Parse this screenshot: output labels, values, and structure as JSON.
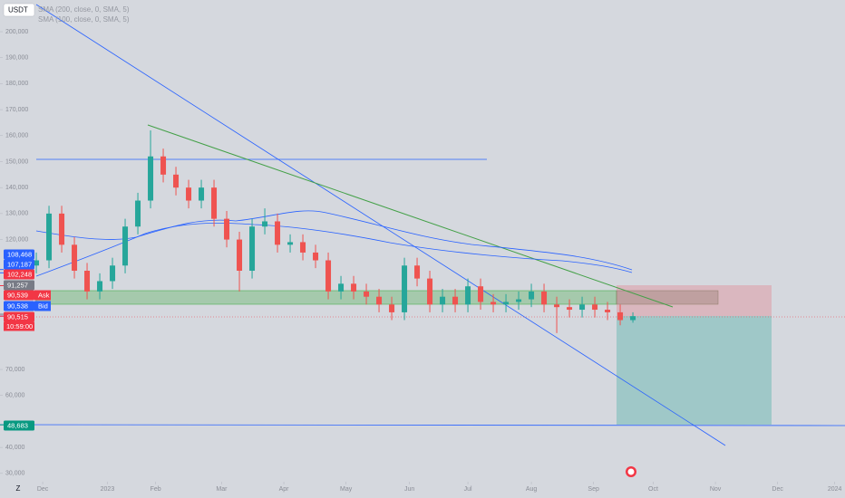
{
  "chart_data": {
    "type": "candlestick",
    "symbol": "USDT",
    "indicators": [
      "SMA (200, close, 0, SMA, 5)",
      "SMA (100, close, 0, SMA, 5)"
    ],
    "up_color": "#26a69a",
    "down_color": "#ef5350",
    "x": [
      0,
      1,
      2,
      3,
      4,
      5,
      6,
      7,
      8,
      9,
      10,
      11,
      12,
      13,
      14,
      15,
      16,
      17,
      18,
      19,
      20,
      21,
      22,
      23,
      24,
      25,
      26,
      27,
      28,
      29,
      30,
      31,
      32,
      33,
      34,
      35,
      36,
      37,
      38,
      39,
      40,
      41,
      42,
      43,
      44,
      45,
      46,
      47
    ],
    "open": [
      110000,
      112000,
      130000,
      118000,
      108000,
      100000,
      104000,
      110000,
      125000,
      135000,
      152000,
      145000,
      140000,
      135000,
      140000,
      128000,
      120000,
      108000,
      125000,
      127000,
      118000,
      119000,
      115000,
      112000,
      100000,
      103000,
      100000,
      98000,
      95000,
      92000,
      110000,
      105000,
      95000,
      98000,
      95000,
      102000,
      96000,
      95000,
      96000,
      97000,
      100000,
      95000,
      94000,
      93000,
      95000,
      93000,
      92000,
      89000
    ],
    "high": [
      115000,
      133000,
      133000,
      121000,
      111000,
      107000,
      113000,
      128000,
      138000,
      162000,
      155000,
      148000,
      143000,
      143000,
      143000,
      131000,
      123000,
      128000,
      132000,
      130000,
      122000,
      122000,
      118000,
      115000,
      106000,
      106000,
      103000,
      101000,
      98000,
      113000,
      113000,
      108000,
      101000,
      101000,
      105000,
      105000,
      99000,
      99000,
      100000,
      103000,
      103000,
      98000,
      97000,
      98000,
      98000,
      96000,
      95000,
      92000
    ],
    "low": [
      107000,
      109000,
      115000,
      105000,
      97000,
      97000,
      101000,
      107000,
      122000,
      132000,
      142000,
      137000,
      132000,
      132000,
      125000,
      117000,
      100000,
      105000,
      122000,
      115000,
      115000,
      112000,
      109000,
      97000,
      97000,
      97000,
      95000,
      92000,
      89000,
      89000,
      102000,
      92000,
      92000,
      92000,
      92000,
      93000,
      92000,
      92000,
      93000,
      94000,
      92000,
      84000,
      90000,
      90000,
      90000,
      89000,
      87000,
      88000
    ],
    "close": [
      112000,
      130000,
      118000,
      108000,
      100000,
      104000,
      110000,
      125000,
      135000,
      152000,
      145000,
      140000,
      135000,
      140000,
      128000,
      120000,
      108000,
      125000,
      127000,
      118000,
      119000,
      115000,
      112000,
      100000,
      103000,
      100000,
      98000,
      95000,
      92000,
      110000,
      105000,
      95000,
      98000,
      95000,
      102000,
      96000,
      95000,
      96000,
      97000,
      100000,
      95000,
      94000,
      93000,
      95000,
      93000,
      92000,
      89000,
      90515
    ],
    "xlim": [
      -2.86,
      63.71
    ],
    "xticks": [
      {
        "value": 0.5,
        "label": "Dec"
      },
      {
        "value": 5.6,
        "label": "2023"
      },
      {
        "value": 9.4,
        "label": "Feb"
      },
      {
        "value": 14.6,
        "label": "Mar"
      },
      {
        "value": 19.5,
        "label": "Apr"
      },
      {
        "value": 24.4,
        "label": "May"
      },
      {
        "value": 29.4,
        "label": "Jun"
      },
      {
        "value": 34,
        "label": "Jul"
      },
      {
        "value": 39,
        "label": "Aug"
      },
      {
        "value": 43.9,
        "label": "Sep"
      },
      {
        "value": 48.6,
        "label": "Oct"
      },
      {
        "value": 53.5,
        "label": "Nov"
      },
      {
        "value": 58.4,
        "label": "Dec"
      },
      {
        "value": 62.9,
        "label": "2024"
      }
    ],
    "ylim": [
      27500,
      212200
    ],
    "yticks": [
      {
        "value": 200000,
        "label": "200,000"
      },
      {
        "value": 190000,
        "label": "190,000"
      },
      {
        "value": 180000,
        "label": "180,000"
      },
      {
        "value": 170000,
        "label": "170,000"
      },
      {
        "value": 160000,
        "label": "160,000"
      },
      {
        "value": 150000,
        "label": "150,000"
      },
      {
        "value": 140000,
        "label": "140,000"
      },
      {
        "value": 130000,
        "label": "130,000"
      },
      {
        "value": 120000,
        "label": "120,000"
      },
      {
        "value": 70000,
        "label": "70,000"
      },
      {
        "value": 60000,
        "label": "60,000"
      },
      {
        "value": 40000,
        "label": "40,000"
      },
      {
        "value": 30000,
        "label": "30,000"
      }
    ],
    "price_labels": [
      {
        "value": 108468,
        "label": "108,468",
        "color": "#2962ff"
      },
      {
        "value": 107187,
        "label": "107,187",
        "color": "#2962ff"
      },
      {
        "value": 102248,
        "label": "102,248",
        "color": "#f23645"
      },
      {
        "value": 91257,
        "label": "91,257",
        "color": "#787b86"
      },
      {
        "value": 90539,
        "label": "90,539",
        "color": "#f23645",
        "tag": "Ask"
      },
      {
        "value": 90538,
        "label": "90,538",
        "color": "#2962ff",
        "tag": "Bid"
      },
      {
        "value": 90515,
        "label": "90,515",
        "color": "#f23645",
        "countdown": "10:59:00"
      },
      {
        "value": 48683,
        "label": "48,683",
        "color": "#089981"
      }
    ],
    "timezone_button": "Z"
  }
}
